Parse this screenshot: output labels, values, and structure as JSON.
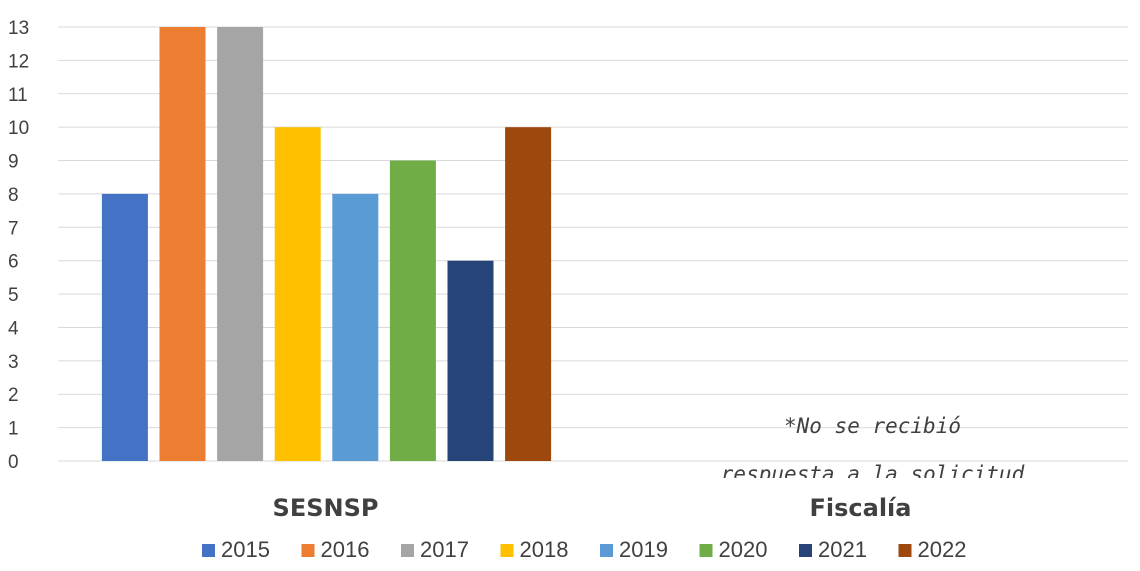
{
  "chart_data": {
    "type": "bar",
    "categories": [
      "SESNSP",
      "Fiscalía"
    ],
    "series": [
      {
        "name": "2015",
        "color": "#4472c4",
        "values": [
          8,
          null
        ]
      },
      {
        "name": "2016",
        "color": "#ed7d31",
        "values": [
          13,
          null
        ]
      },
      {
        "name": "2017",
        "color": "#a5a5a5",
        "values": [
          13,
          null
        ]
      },
      {
        "name": "2018",
        "color": "#ffc000",
        "values": [
          10,
          null
        ]
      },
      {
        "name": "2019",
        "color": "#5b9bd5",
        "values": [
          8,
          null
        ]
      },
      {
        "name": "2020",
        "color": "#70ad47",
        "values": [
          9,
          null
        ]
      },
      {
        "name": "2021",
        "color": "#264478",
        "values": [
          6,
          null
        ]
      },
      {
        "name": "2022",
        "color": "#9e480e",
        "values": [
          10,
          null
        ]
      }
    ],
    "ylim": [
      0,
      13
    ],
    "yticks": [
      0,
      1,
      2,
      3,
      4,
      5,
      6,
      7,
      8,
      9,
      10,
      11,
      12,
      13
    ],
    "grid": true,
    "legend_position": "bottom",
    "annotation": {
      "category": "Fiscalía",
      "lines": [
        "*No se recibió",
        "respuesta a la solicitud"
      ]
    }
  }
}
